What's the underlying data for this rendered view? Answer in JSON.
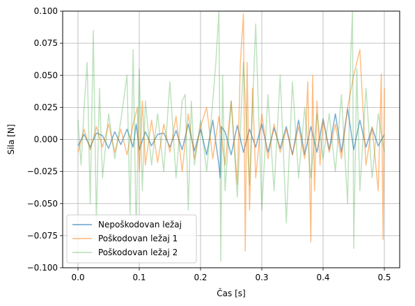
{
  "chart_data": {
    "type": "line",
    "title": "",
    "xlabel": "Čas [s]",
    "ylabel": "Sila [N]",
    "xlim": [
      -0.025,
      0.525
    ],
    "ylim": [
      -0.1,
      0.1
    ],
    "xticks": [
      0.0,
      0.1,
      0.2,
      0.3,
      0.4,
      0.5
    ],
    "xtick_labels": [
      "0.0",
      "0.1",
      "0.2",
      "0.3",
      "0.4",
      "0.5"
    ],
    "yticks": [
      -0.1,
      -0.075,
      -0.05,
      -0.025,
      0.0,
      0.025,
      0.05,
      0.075,
      0.1
    ],
    "ytick_labels": [
      "−0.100",
      "−0.075",
      "−0.050",
      "−0.025",
      "0.000",
      "0.025",
      "0.050",
      "0.075",
      "0.100"
    ],
    "grid": true,
    "legend_position": "lower-left",
    "series": [
      {
        "name": "Nepoškodovan ležaj",
        "color": "#1f77b4",
        "alpha": 0.6,
        "x": [
          0.0,
          0.01,
          0.02,
          0.03,
          0.04,
          0.05,
          0.06,
          0.07,
          0.08,
          0.09,
          0.095,
          0.1,
          0.11,
          0.12,
          0.13,
          0.14,
          0.15,
          0.16,
          0.17,
          0.18,
          0.19,
          0.2,
          0.21,
          0.22,
          0.23,
          0.232,
          0.234,
          0.24,
          0.25,
          0.26,
          0.27,
          0.28,
          0.29,
          0.3,
          0.31,
          0.32,
          0.33,
          0.34,
          0.35,
          0.36,
          0.37,
          0.38,
          0.39,
          0.4,
          0.41,
          0.42,
          0.43,
          0.44,
          0.45,
          0.46,
          0.47,
          0.48,
          0.49,
          0.5
        ],
        "y": [
          -0.005,
          0.004,
          -0.006,
          0.005,
          0.003,
          -0.007,
          0.006,
          -0.004,
          0.008,
          -0.006,
          0.012,
          -0.008,
          0.006,
          -0.005,
          0.004,
          0.005,
          -0.006,
          0.007,
          -0.008,
          0.012,
          -0.009,
          0.008,
          -0.012,
          0.015,
          -0.02,
          -0.03,
          0.01,
          0.006,
          -0.012,
          0.011,
          -0.01,
          0.008,
          -0.006,
          0.012,
          -0.01,
          0.009,
          -0.007,
          0.01,
          -0.012,
          0.015,
          -0.012,
          0.01,
          -0.01,
          0.016,
          -0.008,
          0.02,
          -0.01,
          0.024,
          -0.008,
          0.015,
          -0.006,
          0.009,
          -0.005,
          0.004
        ]
      },
      {
        "name": "Poškodovan ležaj 1",
        "color": "#ff7f0e",
        "alpha": 0.5,
        "x": [
          0.0,
          0.01,
          0.02,
          0.03,
          0.04,
          0.05,
          0.06,
          0.07,
          0.08,
          0.09,
          0.097,
          0.1,
          0.105,
          0.11,
          0.12,
          0.13,
          0.14,
          0.15,
          0.16,
          0.17,
          0.18,
          0.19,
          0.2,
          0.21,
          0.22,
          0.23,
          0.24,
          0.25,
          0.26,
          0.265,
          0.27,
          0.273,
          0.276,
          0.28,
          0.285,
          0.29,
          0.3,
          0.31,
          0.32,
          0.33,
          0.34,
          0.35,
          0.36,
          0.37,
          0.375,
          0.38,
          0.383,
          0.386,
          0.39,
          0.395,
          0.4,
          0.41,
          0.42,
          0.43,
          0.44,
          0.45,
          0.46,
          0.47,
          0.48,
          0.49,
          0.495,
          0.498,
          0.5
        ],
        "y": [
          -0.01,
          0.008,
          -0.008,
          0.01,
          -0.006,
          0.012,
          -0.01,
          0.008,
          -0.012,
          0.012,
          0.025,
          -0.025,
          0.03,
          -0.02,
          0.015,
          -0.018,
          0.012,
          -0.01,
          0.018,
          -0.025,
          0.02,
          -0.015,
          0.01,
          0.025,
          -0.015,
          0.018,
          -0.02,
          0.03,
          -0.035,
          0.06,
          0.098,
          -0.087,
          0.06,
          -0.055,
          0.04,
          -0.03,
          0.02,
          -0.015,
          0.012,
          -0.01,
          0.008,
          -0.012,
          0.01,
          -0.015,
          0.045,
          -0.08,
          0.05,
          -0.04,
          0.03,
          -0.02,
          0.015,
          -0.01,
          0.012,
          -0.015,
          0.025,
          0.05,
          0.07,
          -0.02,
          0.01,
          -0.04,
          0.051,
          -0.078,
          0.04
        ]
      },
      {
        "name": "Poškodovan ležaj 2",
        "color": "#2ca02c",
        "alpha": 0.3,
        "x": [
          0.0,
          0.005,
          0.01,
          0.015,
          0.02,
          0.025,
          0.03,
          0.035,
          0.04,
          0.05,
          0.06,
          0.07,
          0.08,
          0.085,
          0.09,
          0.095,
          0.1,
          0.105,
          0.11,
          0.12,
          0.13,
          0.14,
          0.15,
          0.16,
          0.17,
          0.175,
          0.18,
          0.185,
          0.19,
          0.2,
          0.21,
          0.22,
          0.225,
          0.23,
          0.233,
          0.236,
          0.24,
          0.25,
          0.26,
          0.27,
          0.28,
          0.29,
          0.3,
          0.31,
          0.32,
          0.33,
          0.34,
          0.35,
          0.36,
          0.37,
          0.38,
          0.39,
          0.4,
          0.41,
          0.42,
          0.43,
          0.44,
          0.445,
          0.448,
          0.45,
          0.455,
          0.46,
          0.47,
          0.48,
          0.49,
          0.5
        ],
        "y": [
          0.015,
          -0.02,
          0.025,
          0.06,
          -0.05,
          0.085,
          -0.065,
          0.04,
          -0.03,
          0.02,
          -0.015,
          0.015,
          0.05,
          -0.06,
          0.07,
          -0.075,
          0.055,
          -0.04,
          0.03,
          -0.02,
          0.02,
          -0.025,
          0.045,
          -0.03,
          0.03,
          0.035,
          -0.055,
          0.03,
          -0.02,
          0.015,
          -0.025,
          0.03,
          0.06,
          0.1,
          -0.095,
          0.05,
          -0.04,
          0.03,
          -0.045,
          0.06,
          -0.035,
          0.09,
          -0.055,
          0.035,
          -0.04,
          0.05,
          -0.065,
          0.045,
          -0.03,
          0.025,
          -0.03,
          0.02,
          -0.015,
          0.02,
          -0.025,
          0.035,
          -0.05,
          0.065,
          0.1,
          -0.085,
          0.055,
          -0.04,
          0.04,
          -0.03,
          0.02,
          -0.01
        ]
      }
    ]
  }
}
